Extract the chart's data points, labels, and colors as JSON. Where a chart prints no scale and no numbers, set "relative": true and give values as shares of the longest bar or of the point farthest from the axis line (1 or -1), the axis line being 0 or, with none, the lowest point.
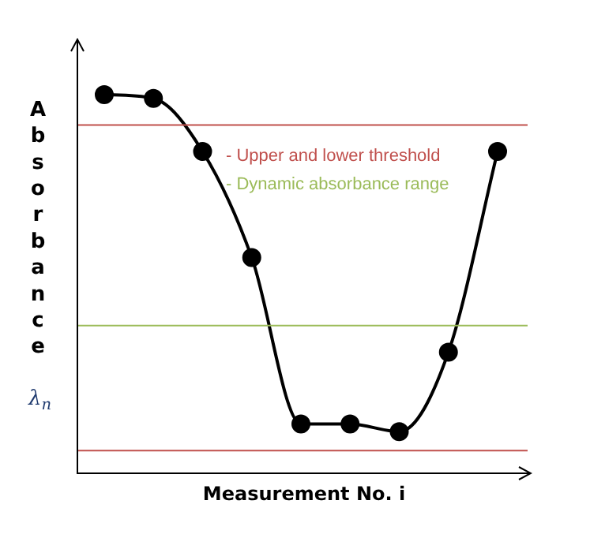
{
  "chart_data": {
    "type": "line",
    "relative": true,
    "xlabel": "Measurement No. i",
    "ylabel": "Absorbance",
    "marker": "circle",
    "annotations": [
      "λ$_{n}$"
    ],
    "categories": [
      null,
      null,
      null,
      null,
      null,
      null,
      null,
      null,
      null
    ],
    "series": [
      {
        "color": "#000000",
        "values": [
          1.0,
          0.99,
          0.85,
          0.57,
          0.13,
          0.13,
          0.11,
          0.32,
          0.85
        ]
      }
    ],
    "ref_lines": [
      {
        "axis": "y",
        "value": 0.92,
        "label": "- Upper and lower threshold",
        "color": "#c0504d"
      },
      {
        "axis": "y",
        "value": 0.39,
        "label": "- Dynamic absorbance range",
        "color": "#9bbb59"
      },
      {
        "axis": "y",
        "value": 0.06,
        "label": null,
        "color": "#c0504d"
      }
    ]
  }
}
